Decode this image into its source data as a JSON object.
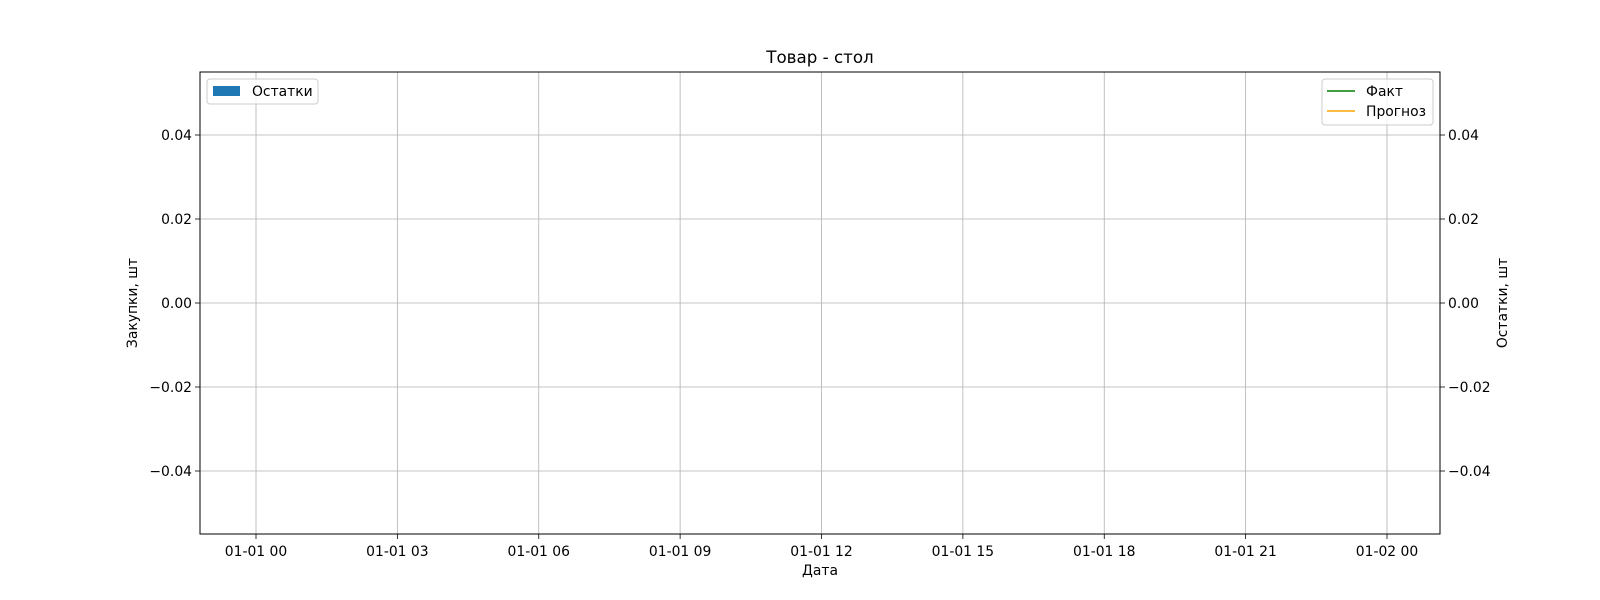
{
  "chart_data": {
    "type": "line",
    "title": "Товар - стол",
    "xlabel": "Дата",
    "ylabel": "Закупки, шт",
    "ylabel_right": "Остатки, шт",
    "x_ticks": [
      "01-01 00",
      "01-01 03",
      "01-01 06",
      "01-01 09",
      "01-01 12",
      "01-01 15",
      "01-01 18",
      "01-01 21",
      "01-02 00"
    ],
    "y_ticks": [
      "0.04",
      "0.02",
      "0.00",
      "−0.02",
      "−0.04"
    ],
    "y_ticks_right": [
      "0.04",
      "0.02",
      "0.00",
      "−0.02",
      "−0.04"
    ],
    "ylim": [
      -0.055,
      0.055
    ],
    "ylim_right": [
      -0.055,
      0.055
    ],
    "grid": true,
    "legend_left": {
      "placement": "top-left",
      "entries": [
        {
          "label": "Остатки",
          "kind": "bar",
          "color": "#1f77b4"
        }
      ]
    },
    "legend_right": {
      "placement": "top-right",
      "entries": [
        {
          "label": "Факт",
          "kind": "line",
          "color": "#008000"
        },
        {
          "label": "Прогноз",
          "kind": "line",
          "color": "#ffa500"
        }
      ]
    },
    "series": [
      {
        "name": "Остатки",
        "kind": "bar",
        "axis": "right",
        "color": "#1f77b4",
        "values": []
      },
      {
        "name": "Факт",
        "kind": "line",
        "axis": "left",
        "color": "#008000",
        "values": []
      },
      {
        "name": "Прогноз",
        "kind": "line",
        "axis": "left",
        "color": "#ffa500",
        "values": []
      }
    ]
  }
}
